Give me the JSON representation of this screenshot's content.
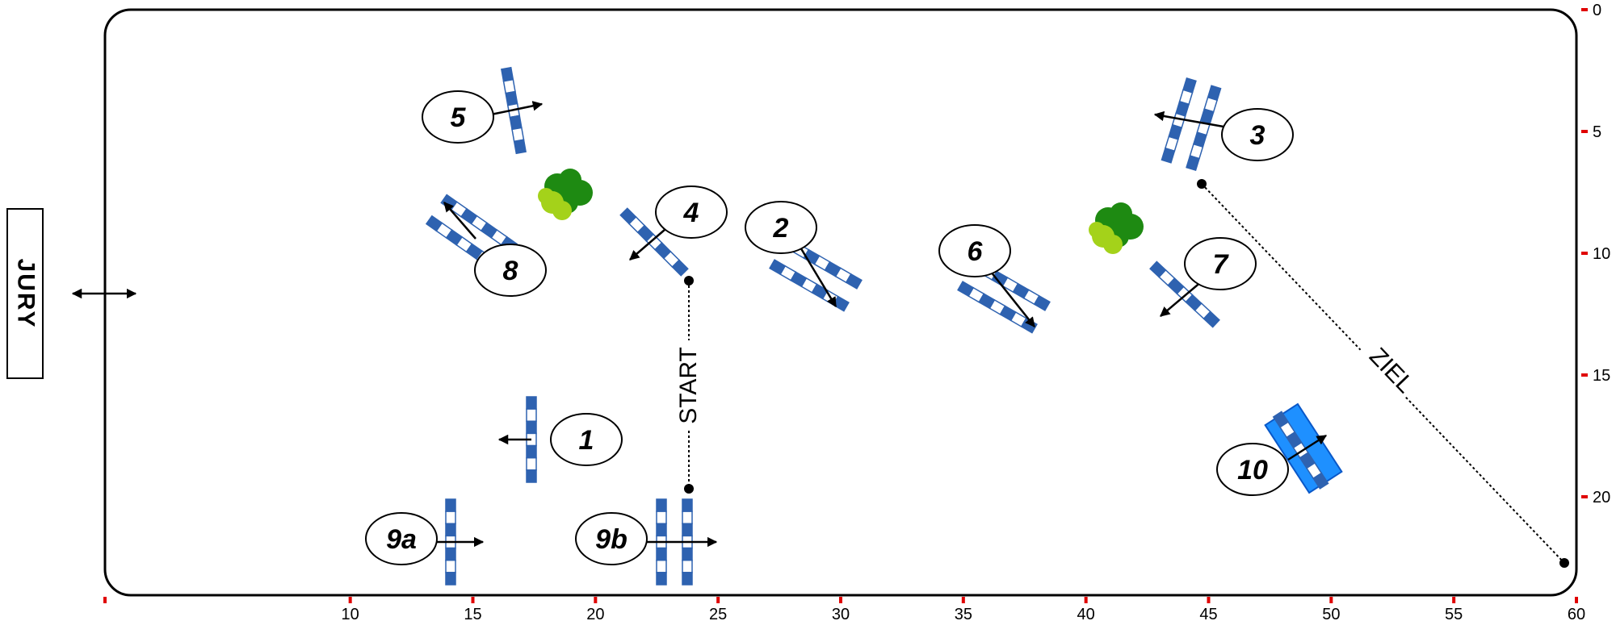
{
  "jury_label": "JURY",
  "start_label": "START",
  "finish_label": "ZIEL",
  "colors": {
    "pole_blue": "#2e62b0",
    "pole_white": "#ffffff",
    "water_blue": "#1e90ff",
    "tree_dark": "#1e8a12",
    "tree_light": "#a4d21a",
    "scale_tick": "#e00000",
    "outline": "#000000"
  },
  "scale": {
    "x_ticks": [
      "10",
      "15",
      "20",
      "25",
      "30",
      "35",
      "40",
      "45",
      "50",
      "55",
      "60"
    ],
    "y_ticks": [
      "0",
      "5",
      "10",
      "15",
      "20"
    ]
  },
  "obstacles": [
    {
      "id": "1",
      "label": "1",
      "type": "vertical",
      "direction": "left"
    },
    {
      "id": "2",
      "label": "2",
      "type": "oxer",
      "direction": "down-right"
    },
    {
      "id": "3",
      "label": "3",
      "type": "oxer",
      "direction": "left"
    },
    {
      "id": "4",
      "label": "4",
      "type": "vertical",
      "direction": "down-left"
    },
    {
      "id": "5",
      "label": "5",
      "type": "vertical",
      "direction": "right"
    },
    {
      "id": "6",
      "label": "6",
      "type": "oxer",
      "direction": "down-right"
    },
    {
      "id": "7",
      "label": "7",
      "type": "vertical",
      "direction": "down-left"
    },
    {
      "id": "8",
      "label": "8",
      "type": "oxer",
      "direction": "up-left"
    },
    {
      "id": "9a",
      "label": "9a",
      "type": "vertical",
      "direction": "right"
    },
    {
      "id": "9b",
      "label": "9b",
      "type": "oxer",
      "direction": "right"
    },
    {
      "id": "10",
      "label": "10",
      "type": "water",
      "direction": "up-right"
    }
  ]
}
